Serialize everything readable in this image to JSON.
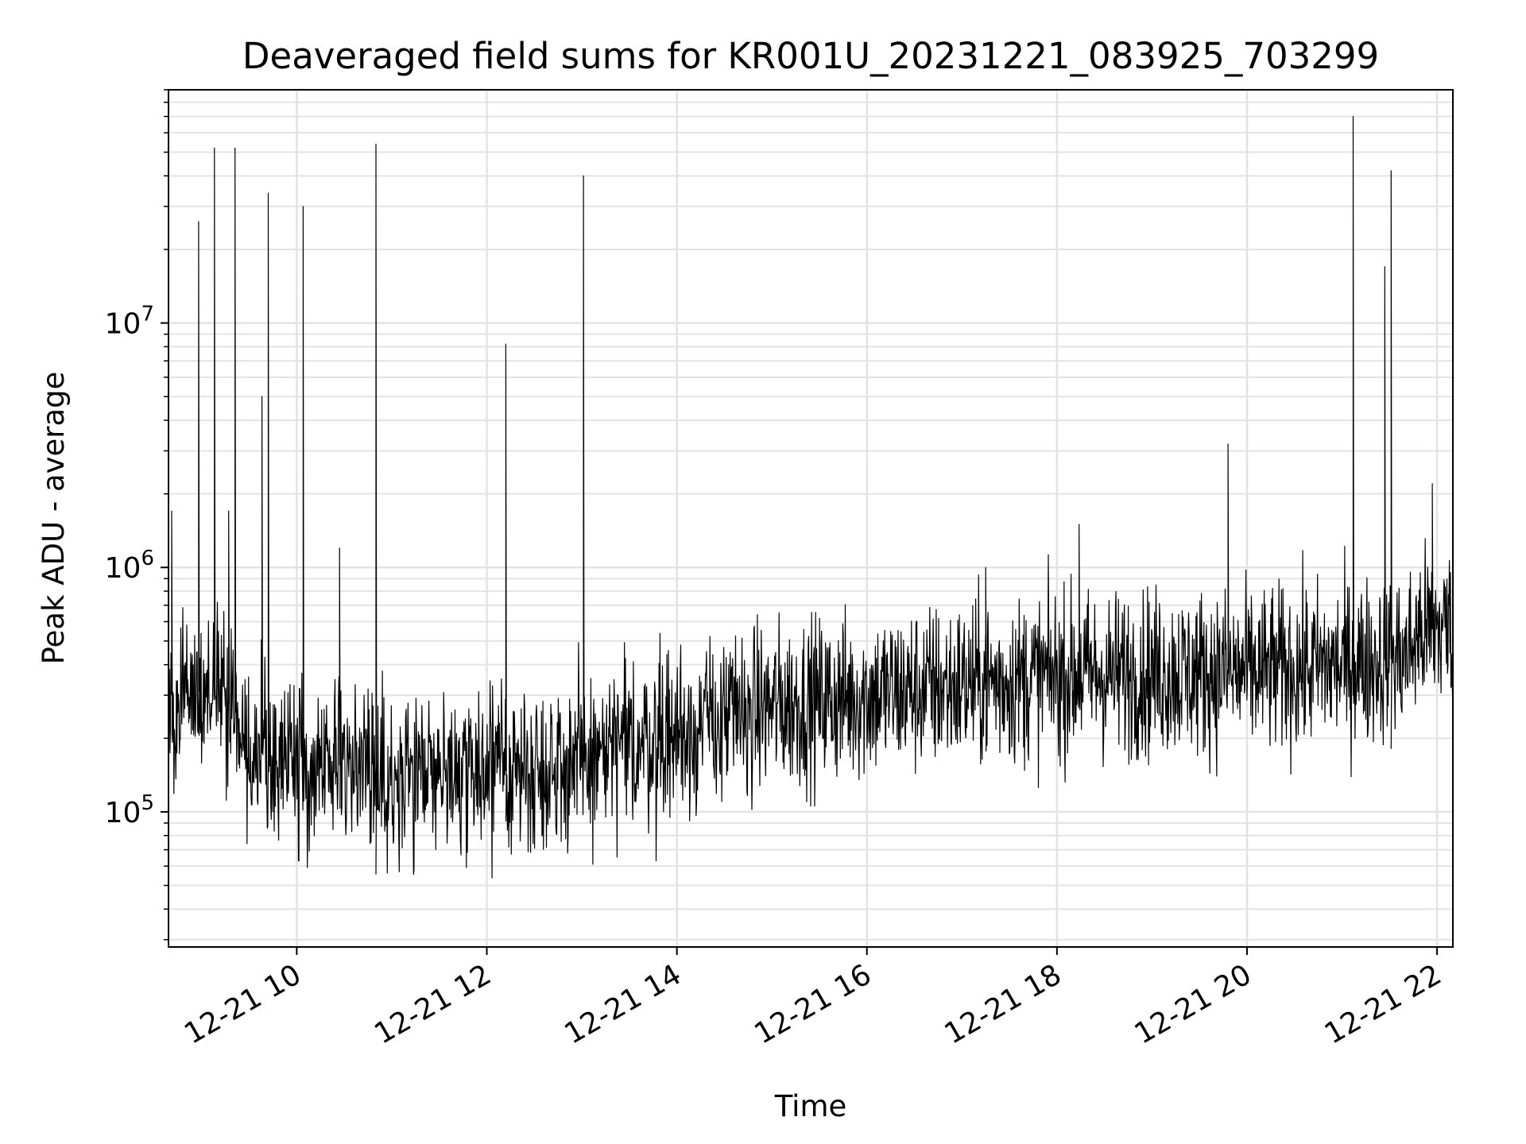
{
  "chart_data": {
    "type": "line",
    "title": "Deaveraged field sums for KR001U_20231221_083925_703299",
    "xlabel": "Time",
    "ylabel": "Peak ADU - average",
    "x_range": [
      "2023-12-21 08:39",
      "2023-12-21 22:10"
    ],
    "ylim": [
      28000,
      90000000
    ],
    "y_scale": "log",
    "grid": true,
    "x_ticks": [
      "12-21 10",
      "12-21 12",
      "12-21 14",
      "12-21 16",
      "12-21 18",
      "12-21 20",
      "12-21 22"
    ],
    "y_ticks": [
      {
        "base": "10",
        "exp": "5",
        "value": 100000
      },
      {
        "base": "10",
        "exp": "6",
        "value": 1000000
      },
      {
        "base": "10",
        "exp": "7",
        "value": 10000000
      }
    ],
    "series": [
      {
        "color": "#000000",
        "baseline": [
          [
            "2023-12-21 08:39",
            300000
          ],
          [
            "2023-12-21 09:15",
            320000
          ],
          [
            "2023-12-21 09:30",
            180000
          ],
          [
            "2023-12-21 10:00",
            160000
          ],
          [
            "2023-12-21 11:00",
            150000
          ],
          [
            "2023-12-21 12:00",
            145000
          ],
          [
            "2023-12-21 13:00",
            160000
          ],
          [
            "2023-12-21 14:00",
            210000
          ],
          [
            "2023-12-21 15:00",
            270000
          ],
          [
            "2023-12-21 16:00",
            300000
          ],
          [
            "2023-12-21 17:00",
            330000
          ],
          [
            "2023-12-21 18:00",
            360000
          ],
          [
            "2023-12-21 19:00",
            370000
          ],
          [
            "2023-12-21 20:00",
            370000
          ],
          [
            "2023-12-21 21:00",
            400000
          ],
          [
            "2023-12-21 21:40",
            430000
          ],
          [
            "2023-12-21 21:50",
            550000
          ],
          [
            "2023-12-21 22:10",
            580000
          ]
        ],
        "spikes": [
          [
            "2023-12-21 08:41",
            1700000
          ],
          [
            "2023-12-21 08:58",
            26000000
          ],
          [
            "2023-12-21 09:08",
            52000000
          ],
          [
            "2023-12-21 09:17",
            1700000
          ],
          [
            "2023-12-21 09:21",
            52000000
          ],
          [
            "2023-12-21 09:38",
            5000000
          ],
          [
            "2023-12-21 09:42",
            34000000
          ],
          [
            "2023-12-21 10:04",
            30000000
          ],
          [
            "2023-12-21 10:27",
            1200000
          ],
          [
            "2023-12-21 10:50",
            54000000
          ],
          [
            "2023-12-21 12:12",
            8200000
          ],
          [
            "2023-12-21 13:01",
            40000000
          ],
          [
            "2023-12-21 17:15",
            1000000
          ],
          [
            "2023-12-21 18:14",
            1500000
          ],
          [
            "2023-12-21 19:48",
            3200000
          ],
          [
            "2023-12-21 21:07",
            70000000
          ],
          [
            "2023-12-21 21:27",
            17000000
          ],
          [
            "2023-12-21 21:31",
            42000000
          ],
          [
            "2023-12-21 21:57",
            2200000
          ]
        ]
      }
    ]
  }
}
